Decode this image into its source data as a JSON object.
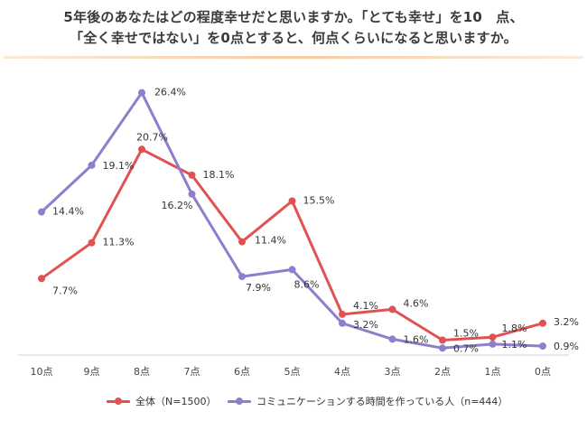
{
  "title": {
    "line1": "5年後のあなたはどの程度幸せだと思いますか。「とても幸せ」を10　点、",
    "line2": "「全く幸せではない」を0点とすると、何点くらいになると思いますか。"
  },
  "colors": {
    "series_all": "#e05252",
    "series_comm": "#8c80cc",
    "axis": "#d0d0d0",
    "title_rule": "#f9c9a0"
  },
  "chart_data": {
    "type": "line",
    "x": [
      "10点",
      "9点",
      "8点",
      "7点",
      "6点",
      "5点",
      "4点",
      "3点",
      "2点",
      "1点",
      "0点"
    ],
    "ylim": [
      0,
      30
    ],
    "grid": false,
    "legend_position": "bottom",
    "series": [
      {
        "name": "全体（N=1500）",
        "values": [
          7.7,
          11.3,
          20.7,
          18.1,
          11.4,
          15.5,
          4.1,
          4.6,
          1.5,
          1.8,
          3.2
        ],
        "labels": [
          "7.7%",
          "11.3%",
          "20.7%",
          "18.1%",
          "11.4%",
          "15.5%",
          "4.1%",
          "4.6%",
          "1.5%",
          "1.8%",
          "3.2%"
        ]
      },
      {
        "name": "コミュニケーションする時間を作っている人（n=444）",
        "values": [
          14.4,
          19.1,
          26.4,
          16.2,
          7.9,
          8.6,
          3.2,
          1.6,
          0.7,
          1.1,
          0.9
        ],
        "labels": [
          "14.4%",
          "19.1%",
          "26.4%",
          "16.2%",
          "7.9%",
          "8.6%",
          "3.2%",
          "1.6%",
          "0.7%",
          "1.1%",
          "0.9%"
        ]
      }
    ]
  }
}
